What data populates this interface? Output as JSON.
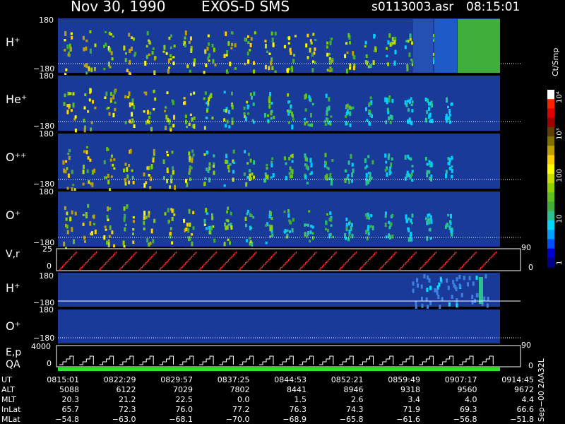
{
  "header": {
    "date": "Nov 30, 1990",
    "instrument": "EXOS-D SMS",
    "file": "s0113003.asr",
    "time": "08:15:01"
  },
  "colorbar": {
    "unit": "Ct/Smp",
    "ticks": [
      "1",
      "10",
      "100",
      "10³",
      "10⁴"
    ],
    "colors": [
      "#00008b",
      "#0000d0",
      "#0050ff",
      "#00a0ff",
      "#00d8ff",
      "#2cc090",
      "#3fae3a",
      "#60c020",
      "#90d000",
      "#c8e000",
      "#ffff00",
      "#ffd000",
      "#c0a000",
      "#807000",
      "#604000",
      "#a00000",
      "#e00000",
      "#ff2000",
      "#ffffff"
    ]
  },
  "panels": [
    {
      "label": "H⁺",
      "top": "180",
      "bottom": "−180"
    },
    {
      "label": "He⁺",
      "top": "180",
      "bottom": "−180"
    },
    {
      "label": "O⁺⁺",
      "top": "180",
      "bottom": "−180"
    },
    {
      "label": "O⁺",
      "top": "180",
      "bottom": "−180"
    }
  ],
  "vr_panel": {
    "label": "V,r",
    "top": "25",
    "bottom": "0",
    "right": "90",
    "right_bottom": "0"
  },
  "panels_b": [
    {
      "label": "H⁺",
      "top": "180",
      "bottom": "−180"
    },
    {
      "label": "O⁺",
      "top": "180",
      "bottom": "−180"
    }
  ],
  "ep_panel": {
    "label": "E,p",
    "top": "4000",
    "bottom": "0",
    "right": "90",
    "right_bottom": "0"
  },
  "qa_label": "QA",
  "footer": {
    "row_labels": [
      "UT",
      "ALT",
      "MLT",
      "InLat",
      "MLat"
    ],
    "columns": [
      {
        "UT": "0815:01",
        "ALT": "5088",
        "MLT": "20.3",
        "InLat": "65.7",
        "MLat": "−54.8"
      },
      {
        "UT": "0822:29",
        "ALT": "6122",
        "MLT": "21.2",
        "InLat": "72.3",
        "MLat": "−63.0"
      },
      {
        "UT": "0829:57",
        "ALT": "7029",
        "MLT": "22.5",
        "InLat": "76.0",
        "MLat": "−68.1"
      },
      {
        "UT": "0837:25",
        "ALT": "7802",
        "MLT": "0.0",
        "InLat": "77.2",
        "MLat": "−70.0"
      },
      {
        "UT": "0844:53",
        "ALT": "8441",
        "MLT": "1.5",
        "InLat": "76.3",
        "MLat": "−68.9"
      },
      {
        "UT": "0852:21",
        "ALT": "8946",
        "MLT": "2.6",
        "InLat": "74.3",
        "MLat": "−65.8"
      },
      {
        "UT": "0859:49",
        "ALT": "9318",
        "MLT": "3.4",
        "InLat": "71.9",
        "MLat": "−61.6"
      },
      {
        "UT": "0907:17",
        "ALT": "9560",
        "MLT": "4.0",
        "InLat": "69.3",
        "MLat": "−56.8"
      },
      {
        "UT": "0914:45",
        "ALT": "9672",
        "MLT": "4.4",
        "InLat": "66.6",
        "MLat": "−51.8"
      }
    ],
    "side_text": "Sep−00  2AA32L"
  },
  "chart_data": {
    "type": "heatmap",
    "title": "Nov 30, 1990    EXOS-D SMS",
    "x_ticks": [
      "0815:01",
      "0822:29",
      "0829:57",
      "0837:25",
      "0844:53",
      "0852:21",
      "0859:49",
      "0907:17",
      "0914:45"
    ],
    "ylim": [
      -180,
      180
    ],
    "color_scale": "log",
    "color_range": [
      1,
      10000
    ],
    "color_unit": "Ct/Smp",
    "series": [
      {
        "name": "H⁺"
      },
      {
        "name": "He⁺"
      },
      {
        "name": "O⁺⁺"
      },
      {
        "name": "O⁺"
      },
      {
        "name": "V,r"
      },
      {
        "name": "H⁺"
      },
      {
        "name": "O⁺"
      },
      {
        "name": "E,p"
      }
    ]
  }
}
